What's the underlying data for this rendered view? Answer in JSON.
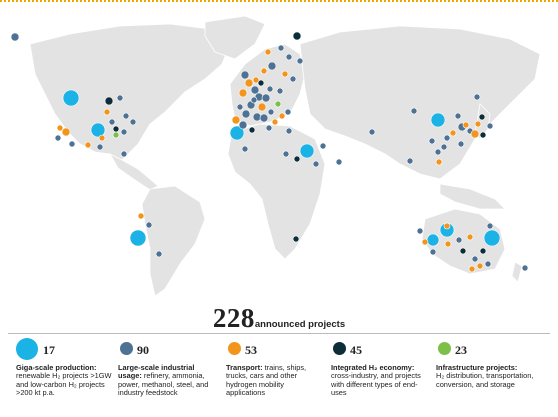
{
  "headline": {
    "count": "228",
    "label": "announced projects"
  },
  "colors": {
    "giga": "#1bb2e6",
    "industrial": "#4d7293",
    "transport": "#f3941d",
    "integrated": "#0d2d3b",
    "infrastructure": "#7cc04a",
    "land": "#e3e3e3"
  },
  "legend": [
    {
      "count": "17",
      "title": "Giga-scale production:",
      "body": "renewable H₂ projects >1GW and low-carbon H₂ projects >200 kt p.a.",
      "color_key": "giga"
    },
    {
      "count": "90",
      "title": "Large-scale industrial usage:",
      "body": "refinery, ammonia, power, methanol, steel, and industry feedstock",
      "color_key": "industrial"
    },
    {
      "count": "53",
      "title": "Transport:",
      "body": "trains, ships, trucks, cars and other hydrogen mobility applications",
      "color_key": "transport"
    },
    {
      "count": "45",
      "title": "Integrated H₂ economy:",
      "body": "cross-industry, and projects with different types of end-uses",
      "color_key": "integrated"
    },
    {
      "count": "23",
      "title": "Infrastructure projects:",
      "body": "H₂ distribution, transportation, conversion, and storage",
      "color_key": "infrastructure"
    }
  ]
}
